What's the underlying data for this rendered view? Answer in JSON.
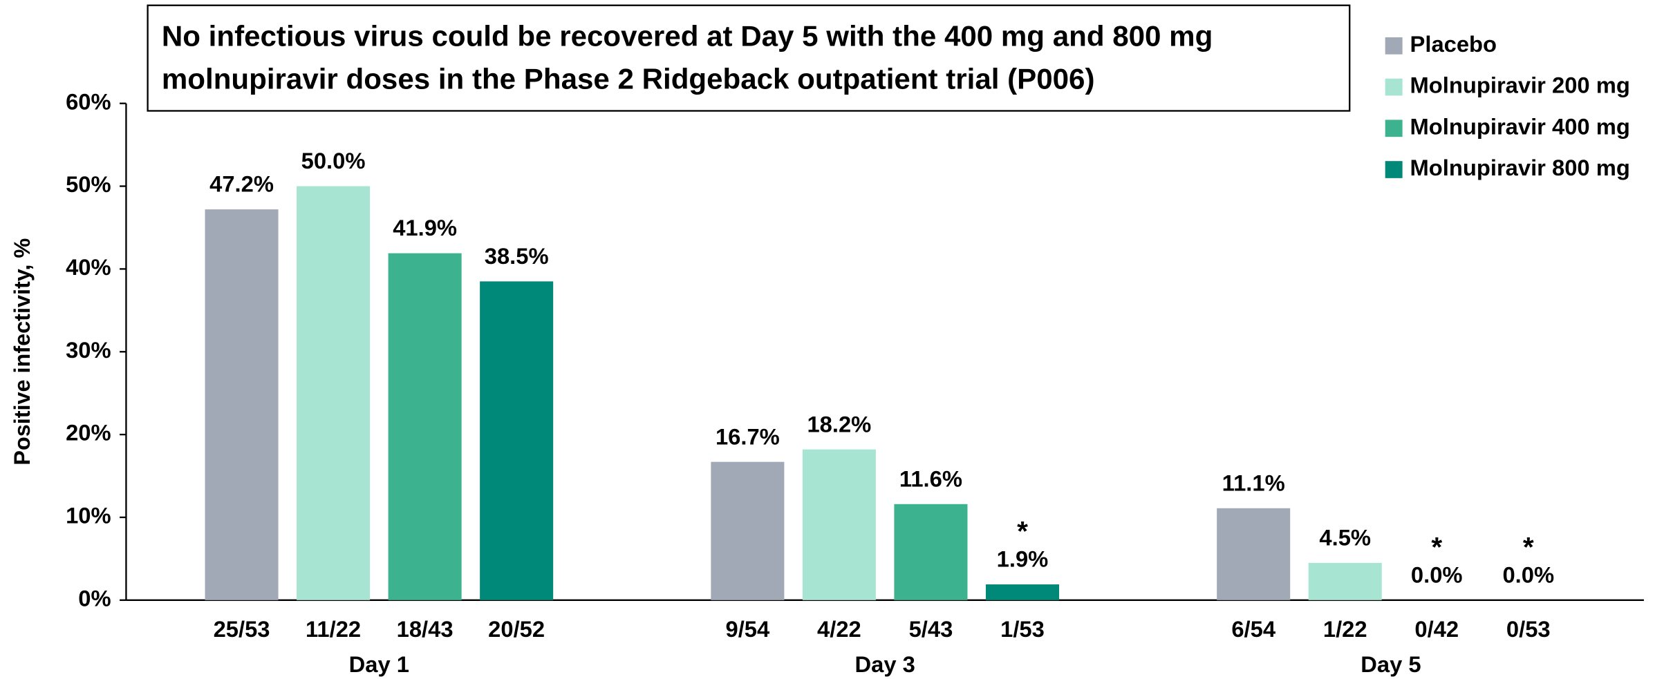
{
  "chart_data": {
    "type": "bar",
    "title": [
      "No infectious virus could be recovered at Day 5 with the 400 mg and 800 mg",
      "molnupiravir doses in the Phase 2 Ridgeback outpatient trial (P006)"
    ],
    "ylabel": "Positive infectivity, %",
    "categories": [
      "Day 1",
      "Day 3",
      "Day 5"
    ],
    "series": [
      {
        "name": "Placebo",
        "color": "#a2a9b6",
        "values": [
          47.2,
          16.7,
          11.1
        ],
        "value_labels": [
          "47.2%",
          "16.7%",
          "11.1%"
        ],
        "counts": [
          "25/53",
          "9/54",
          "6/54"
        ],
        "markers": [
          null,
          null,
          null
        ]
      },
      {
        "name": "Molnupiravir 200 mg",
        "color": "#a8e4d2",
        "values": [
          50.0,
          18.2,
          4.5
        ],
        "value_labels": [
          "50.0%",
          "18.2%",
          "4.5%"
        ],
        "counts": [
          "11/22",
          "4/22",
          "1/22"
        ],
        "markers": [
          null,
          null,
          null
        ]
      },
      {
        "name": "Molnupiravir 400 mg",
        "color": "#3db28e",
        "values": [
          41.9,
          11.6,
          0.0
        ],
        "value_labels": [
          "41.9%",
          "11.6%",
          "0.0%"
        ],
        "counts": [
          "18/43",
          "5/43",
          "0/42"
        ],
        "markers": [
          null,
          null,
          "*"
        ]
      },
      {
        "name": "Molnupiravir 800 mg",
        "color": "#008878",
        "values": [
          38.5,
          1.9,
          0.0
        ],
        "value_labels": [
          "38.5%",
          "1.9%",
          "0.0%"
        ],
        "counts": [
          "20/52",
          "1/53",
          "0/53"
        ],
        "markers": [
          null,
          "*",
          "*"
        ]
      }
    ],
    "ylim": [
      0,
      60
    ],
    "yticks": [
      {
        "value": 0,
        "label": "0%"
      },
      {
        "value": 10,
        "label": "10%"
      },
      {
        "value": 20,
        "label": "20%"
      },
      {
        "value": 30,
        "label": "30%"
      },
      {
        "value": 40,
        "label": "40%"
      },
      {
        "value": 50,
        "label": "50%"
      },
      {
        "value": 60,
        "label": "60%"
      }
    ],
    "legend": "top-right"
  }
}
